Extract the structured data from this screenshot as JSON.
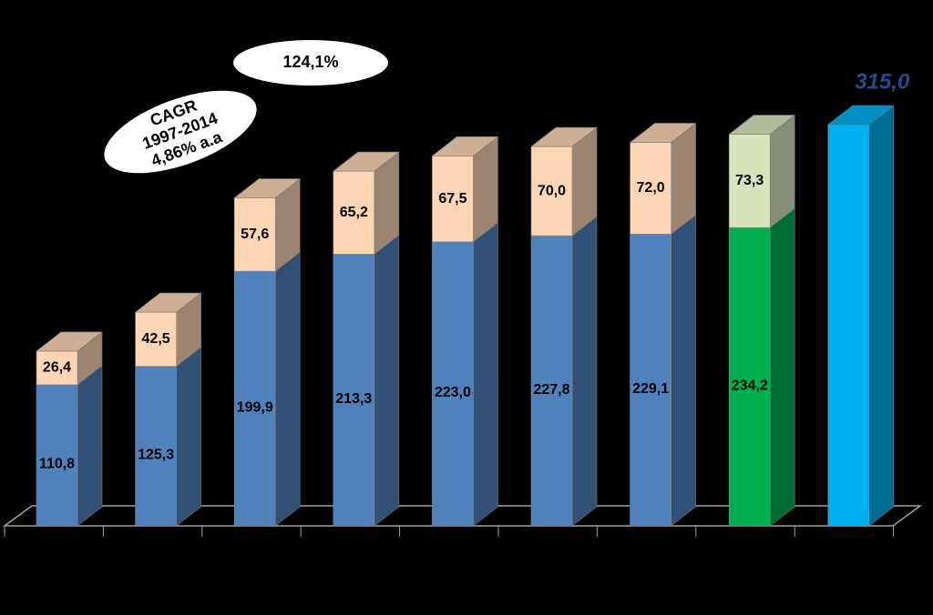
{
  "chart_data": {
    "type": "bar3d_stacked",
    "categories": [
      null,
      null,
      null,
      null,
      null,
      null,
      null,
      null,
      null
    ],
    "series": [
      {
        "colors": [
          "#4f81bd",
          "#4f81bd",
          "#4f81bd",
          "#4f81bd",
          "#4f81bd",
          "#4f81bd",
          "#4f81bd",
          "#00b050",
          "#00b0f0"
        ],
        "values": [
          110.8,
          125.3,
          199.9,
          213.3,
          223.0,
          227.8,
          229.1,
          234.2,
          315.0
        ],
        "value_labels": [
          "110,8",
          "125,3",
          "199,9",
          "213,3",
          "223,0",
          "227,8",
          "229,1",
          "234,2",
          "315,0"
        ]
      },
      {
        "colors": [
          "#fcd5b4",
          "#fcd5b4",
          "#fcd5b4",
          "#fcd5b4",
          "#fcd5b4",
          "#fcd5b4",
          "#fcd5b4",
          "#d7e4bc",
          null
        ],
        "values": [
          26.4,
          42.5,
          57.6,
          65.2,
          67.5,
          70.0,
          72.0,
          73.3,
          null
        ],
        "value_labels": [
          "26,4",
          "42,5",
          "57,6",
          "65,2",
          "67,5",
          "70,0",
          "72,0",
          "73,3",
          null
        ]
      }
    ],
    "ylim": [
      0,
      350
    ],
    "annotations": [
      "124,1%",
      [
        "CAGR",
        "1997-2014",
        "4,86% a.a"
      ]
    ]
  }
}
